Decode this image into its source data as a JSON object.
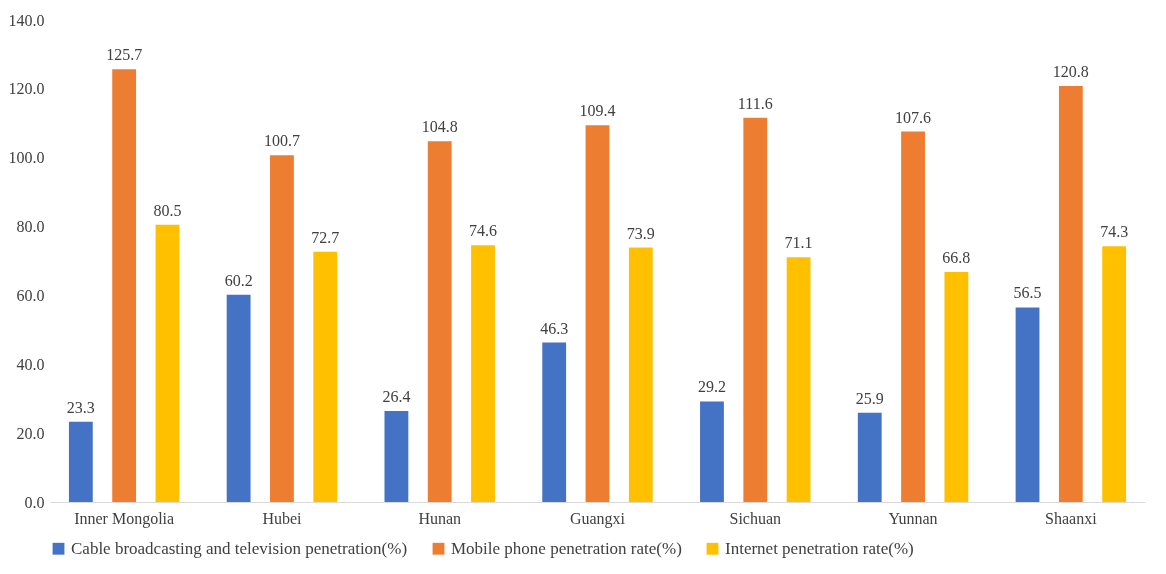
{
  "chart_data": {
    "type": "bar",
    "categories": [
      "Inner Mongolia",
      "Hubei",
      "Hunan",
      "Guangxi",
      "Sichuan",
      "Yunnan",
      "Shaanxi"
    ],
    "series": [
      {
        "name": "Cable broadcasting and television penetration(%)",
        "color": "#4472c4",
        "values": [
          23.3,
          60.2,
          26.4,
          46.3,
          29.2,
          25.9,
          56.5
        ]
      },
      {
        "name": "Mobile phone penetration rate(%)",
        "color": "#ed7d31",
        "values": [
          125.7,
          100.7,
          104.8,
          109.4,
          111.6,
          107.6,
          120.8
        ]
      },
      {
        "name": "Internet penetration rate(%)",
        "color": "#ffc000",
        "values": [
          80.5,
          72.7,
          74.6,
          73.9,
          71.1,
          66.8,
          74.3
        ]
      }
    ],
    "ylim": [
      0,
      140
    ],
    "yticks": [
      {
        "value": 0,
        "label": "0.0"
      },
      {
        "value": 20,
        "label": "20.0"
      },
      {
        "value": 40,
        "label": "40.0"
      },
      {
        "value": 60,
        "label": "60.0"
      },
      {
        "value": 80,
        "label": "80.0"
      },
      {
        "value": 100,
        "label": "100.0"
      },
      {
        "value": 120,
        "label": "120.0"
      },
      {
        "value": 140,
        "label": "140.0"
      }
    ],
    "grid": false,
    "legend": "bottom",
    "data_labels": true
  }
}
